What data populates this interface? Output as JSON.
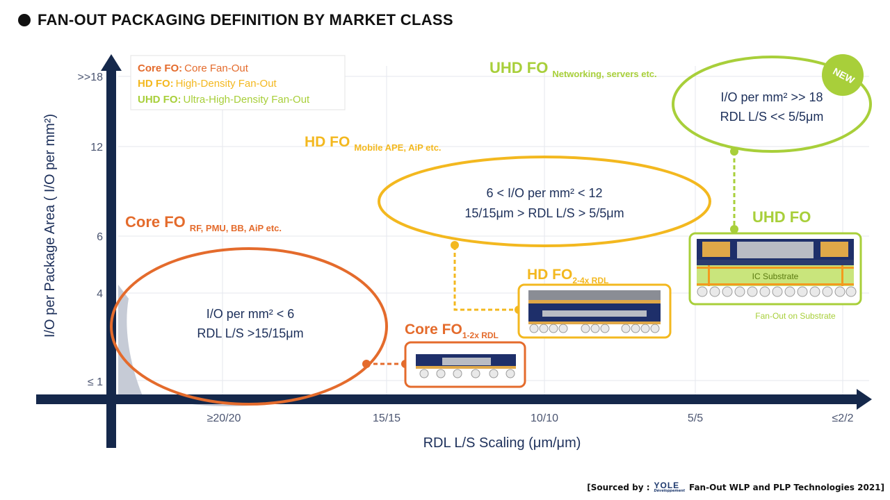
{
  "title": "FAN-OUT PACKAGING DEFINITION BY MARKET CLASS",
  "colors": {
    "core": "#e46b2c",
    "hd": "#f3b81f",
    "uhd": "#a8cf3a",
    "axis": "#15284b",
    "text_dark": "#1c2f5a"
  },
  "legend": [
    {
      "abbr": "Core FO:",
      "desc": "Core Fan-Out"
    },
    {
      "abbr": "HD FO:",
      "desc": "High-Density Fan-Out"
    },
    {
      "abbr": "UHD FO:",
      "desc": "Ultra-High-Density Fan-Out"
    }
  ],
  "y_axis": {
    "label": "I/O per Package Area ( I/O per mm²)",
    "ticks": [
      ">>18",
      "12",
      "6",
      "4",
      "≤ 1"
    ]
  },
  "x_axis": {
    "label": "RDL L/S Scaling (μm/μm)",
    "ticks": [
      "≥20/20",
      "15/15",
      "10/10",
      "5/5",
      "≤2/2"
    ]
  },
  "classes": {
    "core": {
      "heading": "Core FO",
      "sub": "RF, PMU, BB, AiP etc.",
      "bubble": [
        "I/O per mm² < 6",
        "RDL L/S >15/15μm"
      ],
      "pkg_label": "Core FO",
      "pkg_sub": "1-2x RDL"
    },
    "hd": {
      "heading": "HD FO",
      "sub": "Mobile APE, AiP  etc.",
      "bubble": [
        "6 < I/O per mm² < 12",
        "15/15μm > RDL L/S > 5/5μm"
      ],
      "pkg_label": "HD FO",
      "pkg_sub": "2-4x RDL"
    },
    "uhd": {
      "heading": "UHD FO",
      "sub": "Networking, servers etc.",
      "bubble": [
        "I/O per mm² >> 18",
        "RDL L/S << 5/5μm"
      ],
      "badge": "NEW",
      "pkg_label": "UHD FO",
      "substrate_label": "IC Substrate",
      "pkg_caption": "Fan-Out on Substrate"
    }
  },
  "source": {
    "prefix": "[Sourced  by :",
    "logo": "YOLE",
    "logo_sub": "Développement",
    "text": "Fan-Out WLP and PLP Technologies  2021]"
  }
}
